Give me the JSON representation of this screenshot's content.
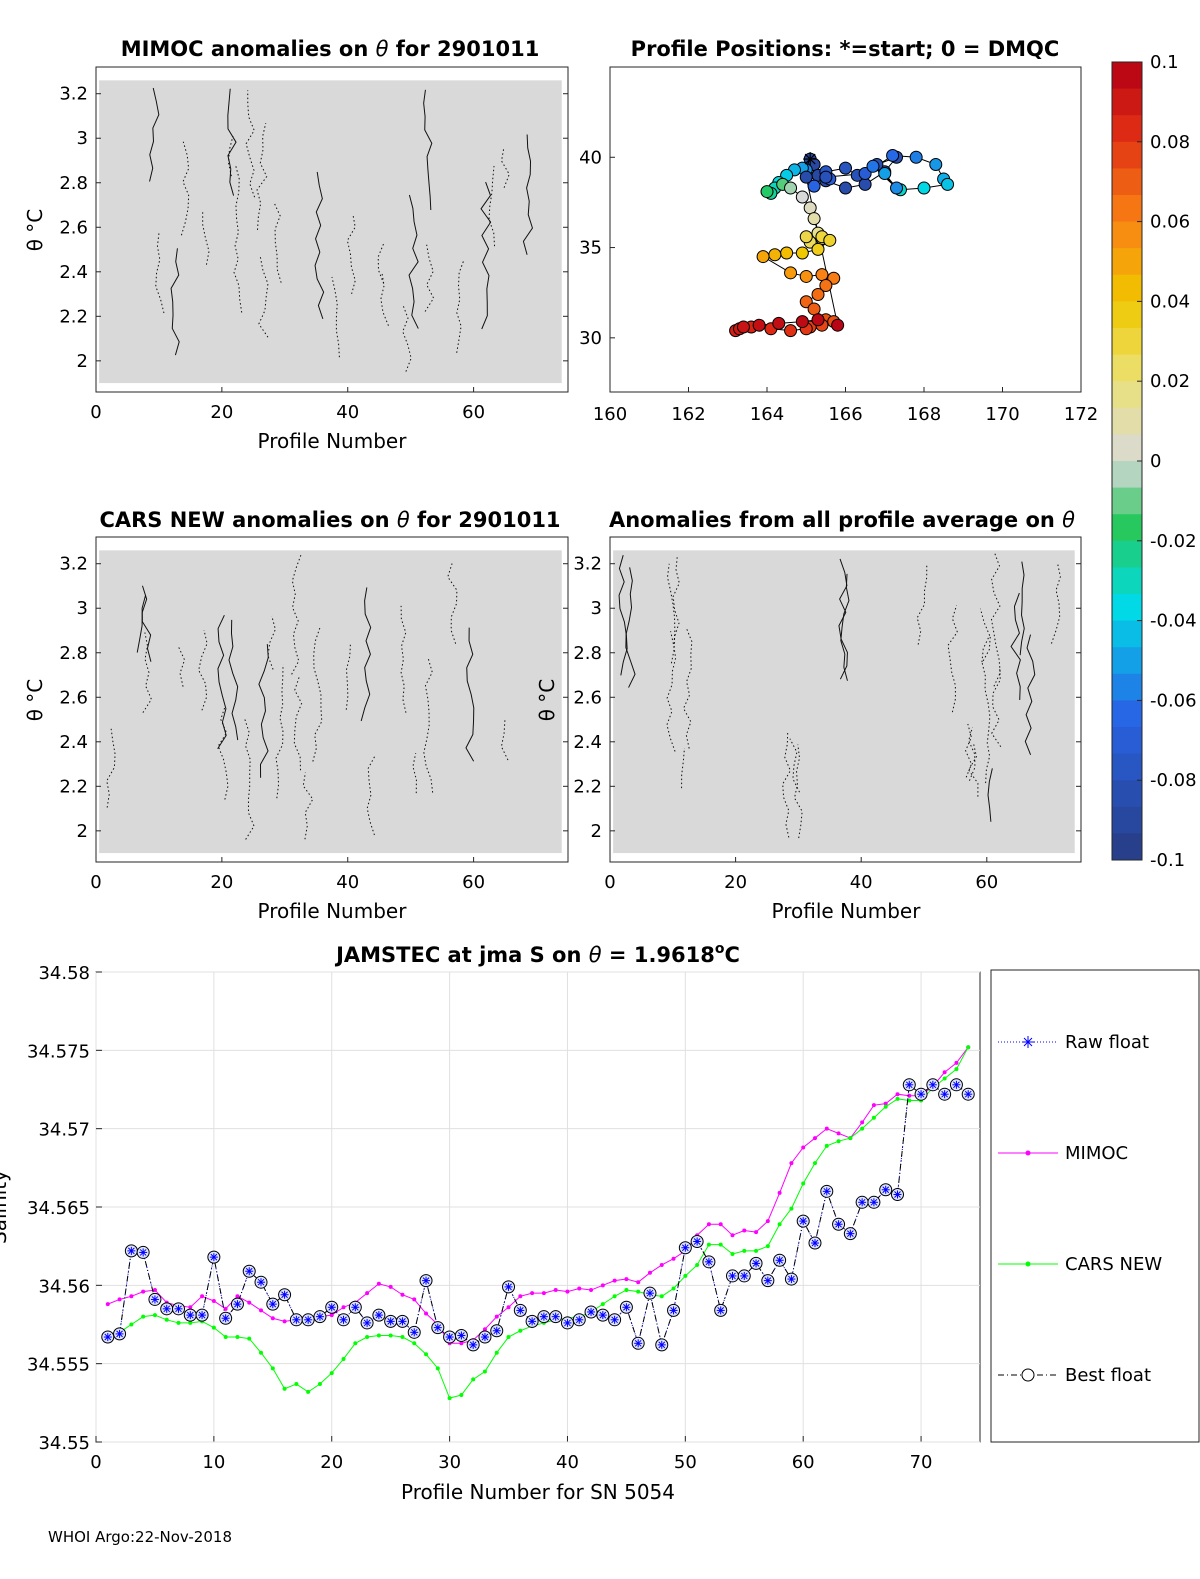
{
  "colors": {
    "mimoc": "#ff00ff",
    "cars": "#00ff00",
    "raw": "#0000ff",
    "best": "#000000",
    "fill": "#d9d9d9"
  },
  "footer": "WHOI Argo:22-Nov-2018",
  "colorbar": {
    "ticks": [
      "0.1",
      "0.08",
      "0.06",
      "0.04",
      "0.02",
      "0",
      "-0.02",
      "-0.04",
      "-0.06",
      "-0.08",
      "-0.1"
    ],
    "range": [
      -0.1,
      0.1
    ]
  },
  "chart_data": [
    {
      "id": "mimoc",
      "type": "heatmap",
      "title_parts": [
        "MIMOC anomalies on ",
        "θ",
        "  for 2901011"
      ],
      "xlabel": "Profile Number",
      "ylabel": "θ °C",
      "xlim": [
        0,
        75
      ],
      "ylim": [
        1.86,
        3.32
      ],
      "xticks": [
        0,
        20,
        40,
        60
      ],
      "yticks": [
        2,
        2.2,
        2.4,
        2.6,
        2.8,
        3,
        3.2
      ],
      "ytick_labels": [
        "2",
        "2.2",
        "2.4",
        "2.6",
        "2.8",
        "3",
        "3.2"
      ]
    },
    {
      "id": "positions",
      "type": "scatter",
      "title": "Profile Positions: *=start; 0 = DMQC",
      "xlim": [
        160,
        172
      ],
      "ylim": [
        27,
        45
      ],
      "xticks": [
        160,
        162,
        164,
        166,
        168,
        170,
        172
      ],
      "yticks": [
        30,
        35,
        40
      ],
      "x": [
        165.1,
        165.2,
        165.3,
        165.5,
        166.0,
        166.5,
        167.0,
        167.3,
        166.8,
        166.3,
        166.0,
        165.5,
        165.6,
        165.2,
        165.0,
        164.9,
        164.7,
        164.5,
        164.3,
        164.2,
        164.1,
        164.0,
        164.4,
        164.6,
        164.9,
        165.1,
        165.2,
        165.3,
        165.4,
        165.1,
        165.0,
        165.4,
        165.6,
        165.3,
        164.9,
        164.5,
        164.2,
        163.9,
        164.6,
        165.0,
        165.4,
        165.7,
        165.5,
        165.3,
        165.0,
        165.2,
        165.5,
        165.7,
        165.4,
        165.1,
        165.0,
        164.6,
        164.1,
        163.6,
        163.2,
        163.3,
        163.4,
        163.8,
        164.3,
        164.9,
        165.3,
        165.8,
        165.0,
        165.5,
        166.5,
        167.2,
        167.8,
        168.3,
        168.5,
        168.6,
        168.0,
        167.4,
        166.7,
        167.3,
        167.0
      ],
      "y": [
        39.9,
        39.6,
        39.0,
        38.7,
        38.3,
        38.5,
        39.2,
        40.0,
        39.6,
        39.0,
        39.4,
        39.2,
        38.8,
        38.4,
        39.3,
        39.4,
        39.3,
        39.0,
        38.6,
        38.3,
        38.0,
        38.1,
        38.5,
        38.3,
        37.8,
        37.2,
        36.6,
        35.8,
        35.5,
        35.3,
        35.6,
        35.6,
        35.4,
        34.9,
        34.7,
        34.7,
        34.6,
        34.5,
        33.6,
        33.4,
        33.5,
        33.3,
        32.9,
        32.4,
        32.0,
        31.6,
        31.0,
        30.9,
        30.7,
        30.6,
        30.5,
        30.4,
        30.5,
        30.6,
        30.4,
        30.5,
        30.6,
        30.7,
        30.8,
        30.9,
        31.0,
        30.7,
        38.9,
        38.9,
        39.1,
        40.1,
        40.0,
        39.6,
        38.8,
        38.5,
        38.3,
        38.2,
        39.5,
        38.3,
        39.1
      ],
      "color_values": [
        -0.09,
        -0.089,
        -0.088,
        -0.087,
        -0.086,
        -0.085,
        -0.084,
        -0.083,
        -0.082,
        -0.08,
        -0.078,
        -0.075,
        -0.07,
        -0.065,
        -0.055,
        -0.05,
        -0.045,
        -0.04,
        -0.035,
        -0.03,
        -0.025,
        -0.018,
        -0.012,
        -0.005,
        0.0,
        0.005,
        0.01,
        0.015,
        0.02,
        0.025,
        0.028,
        0.03,
        0.033,
        0.036,
        0.04,
        0.043,
        0.046,
        0.05,
        0.053,
        0.056,
        0.06,
        0.062,
        0.064,
        0.066,
        0.068,
        0.07,
        0.072,
        0.074,
        0.076,
        0.078,
        0.08,
        0.082,
        0.084,
        0.086,
        0.088,
        0.09,
        0.092,
        0.094,
        0.095,
        0.096,
        0.097,
        0.098,
        -0.086,
        -0.08,
        -0.07,
        -0.063,
        -0.058,
        -0.052,
        -0.047,
        -0.042,
        -0.037,
        -0.032,
        -0.06,
        -0.055,
        -0.05
      ],
      "start": [
        165.1,
        39.9
      ]
    },
    {
      "id": "cars",
      "type": "heatmap",
      "title_parts": [
        "CARS NEW anomalies on ",
        "θ",
        " for 2901011"
      ],
      "xlabel": "Profile Number",
      "ylabel": "θ °C",
      "xlim": [
        0,
        75
      ],
      "ylim": [
        1.86,
        3.32
      ],
      "xticks": [
        0,
        20,
        40,
        60
      ],
      "yticks": [
        2,
        2.2,
        2.4,
        2.6,
        2.8,
        3,
        3.2
      ],
      "ytick_labels": [
        "2",
        "2.2",
        "2.4",
        "2.6",
        "2.8",
        "3",
        "3.2"
      ]
    },
    {
      "id": "avg",
      "type": "heatmap",
      "title_parts": [
        "Anomalies from all profile average on ",
        "θ",
        ""
      ],
      "xlabel": "Profile Number",
      "ylabel": "θ °C",
      "xlim": [
        0,
        75
      ],
      "ylim": [
        1.86,
        3.32
      ],
      "xticks": [
        0,
        20,
        40,
        60
      ],
      "yticks": [
        2,
        2.2,
        2.4,
        2.6,
        2.8,
        3,
        3.2
      ],
      "ytick_labels": [
        "2",
        "2.2",
        "2.4",
        "2.6",
        "2.8",
        "3",
        "3.2"
      ]
    },
    {
      "id": "jamstec",
      "type": "line",
      "title_parts": [
        "JAMSTEC at jma S on ",
        "θ",
        " = 1.9618",
        "o",
        "C"
      ],
      "xlabel": "Profile Number for SN 5054",
      "ylabel": "Salinity",
      "xlim": [
        0,
        75
      ],
      "ylim": [
        34.55,
        34.58
      ],
      "xticks": [
        0,
        10,
        20,
        30,
        40,
        50,
        60,
        70
      ],
      "yticks": [
        34.55,
        34.555,
        34.56,
        34.565,
        34.57,
        34.575,
        34.58
      ],
      "ytick_labels": [
        "34.55",
        "34.555",
        "34.56",
        "34.565",
        "34.57",
        "34.575",
        "34.58"
      ],
      "legend": [
        "Raw float",
        "MIMOC",
        "CARS NEW",
        "Best float"
      ],
      "x": [
        1,
        2,
        3,
        4,
        5,
        6,
        7,
        8,
        9,
        10,
        11,
        12,
        13,
        14,
        15,
        16,
        17,
        18,
        19,
        20,
        21,
        22,
        23,
        24,
        25,
        26,
        27,
        28,
        29,
        30,
        31,
        32,
        33,
        34,
        35,
        36,
        37,
        38,
        39,
        40,
        41,
        42,
        43,
        44,
        45,
        46,
        47,
        48,
        49,
        50,
        51,
        52,
        53,
        54,
        55,
        56,
        57,
        58,
        59,
        60,
        61,
        62,
        63,
        64,
        65,
        66,
        67,
        68,
        69,
        70,
        71,
        72,
        73,
        74
      ],
      "series": [
        {
          "name": "MIMOC",
          "values": [
            34.5588,
            34.5591,
            34.5593,
            34.5596,
            34.5597,
            34.5589,
            34.5587,
            34.5586,
            34.5593,
            34.559,
            34.5585,
            34.5593,
            34.5589,
            34.5584,
            34.5579,
            34.5577,
            34.5578,
            34.5579,
            34.558,
            34.5581,
            34.5586,
            34.5589,
            34.5595,
            34.5601,
            34.5599,
            34.5594,
            34.5591,
            34.5582,
            34.5575,
            34.5563,
            34.5563,
            34.5565,
            34.5572,
            34.558,
            34.5586,
            34.5593,
            34.5595,
            34.5595,
            34.5597,
            34.5596,
            34.5598,
            34.5597,
            34.56,
            34.5603,
            34.5604,
            34.5602,
            34.5608,
            34.5613,
            34.5617,
            34.5622,
            34.5632,
            34.5639,
            34.5639,
            34.5632,
            34.5635,
            34.5634,
            34.5641,
            34.5659,
            34.5678,
            34.5688,
            34.5694,
            34.57,
            34.5697,
            34.5694,
            34.5704,
            34.5715,
            34.5716,
            34.5722,
            34.5721,
            34.5721,
            34.5727,
            34.5736,
            34.5742,
            34.5752
          ]
        },
        {
          "name": "CARS NEW",
          "values": [
            34.5567,
            34.557,
            34.5575,
            34.558,
            34.5581,
            34.5578,
            34.5576,
            34.5576,
            34.5577,
            34.5573,
            34.5567,
            34.5567,
            34.5566,
            34.5557,
            34.5547,
            34.5534,
            34.5537,
            34.5532,
            34.5537,
            34.5544,
            34.5553,
            34.5563,
            34.5567,
            34.5568,
            34.5568,
            34.5567,
            34.5563,
            34.5556,
            34.5547,
            34.5528,
            34.553,
            34.554,
            34.5545,
            34.5557,
            34.5567,
            34.5571,
            34.5574,
            34.5576,
            34.5578,
            34.5579,
            34.558,
            34.5583,
            34.5588,
            34.5593,
            34.5597,
            34.5596,
            34.5594,
            34.5593,
            34.5598,
            34.5606,
            34.5613,
            34.5626,
            34.5626,
            34.562,
            34.5622,
            34.5622,
            34.5625,
            34.5639,
            34.5649,
            34.5665,
            34.5678,
            34.5689,
            34.5692,
            34.5694,
            34.57,
            34.5707,
            34.5714,
            34.5719,
            34.5718,
            34.5718,
            34.5726,
            34.5732,
            34.5738,
            34.5752
          ]
        },
        {
          "name": "Raw float",
          "values": [
            34.5567,
            34.5569,
            34.5622,
            34.5621,
            34.5591,
            34.5585,
            34.5585,
            34.5581,
            34.5581,
            34.5618,
            34.5579,
            34.5588,
            34.5609,
            34.5602,
            34.5588,
            34.5594,
            34.5578,
            34.5578,
            34.558,
            34.5586,
            34.5578,
            34.5586,
            34.5576,
            34.5581,
            34.5577,
            34.5577,
            34.557,
            34.5603,
            34.5573,
            34.5567,
            34.5568,
            34.5562,
            34.5567,
            34.5571,
            34.5599,
            34.5584,
            34.5577,
            34.558,
            34.558,
            34.5576,
            34.5578,
            34.5583,
            34.5581,
            34.5578,
            34.5586,
            34.5563,
            34.5595,
            34.5562,
            34.5584,
            34.5624,
            34.5628,
            34.5615,
            34.5584,
            34.5606,
            34.5606,
            34.5614,
            34.5603,
            34.5616,
            34.5604,
            34.5641,
            34.5627,
            34.566,
            34.5639,
            34.5633,
            34.5653,
            34.5653,
            34.5661,
            34.5658,
            34.5728,
            34.5722,
            34.5728,
            34.5722,
            34.5728,
            34.5722
          ]
        },
        {
          "name": "Best float",
          "values": [
            34.5567,
            34.5569,
            34.5622,
            34.5621,
            34.5591,
            34.5585,
            34.5585,
            34.5581,
            34.5581,
            34.5618,
            34.5579,
            34.5588,
            34.5609,
            34.5602,
            34.5588,
            34.5594,
            34.5578,
            34.5578,
            34.558,
            34.5586,
            34.5578,
            34.5586,
            34.5576,
            34.5581,
            34.5577,
            34.5577,
            34.557,
            34.5603,
            34.5573,
            34.5567,
            34.5568,
            34.5562,
            34.5567,
            34.5571,
            34.5599,
            34.5584,
            34.5577,
            34.558,
            34.558,
            34.5576,
            34.5578,
            34.5583,
            34.5581,
            34.5578,
            34.5586,
            34.5563,
            34.5595,
            34.5562,
            34.5584,
            34.5624,
            34.5628,
            34.5615,
            34.5584,
            34.5606,
            34.5606,
            34.5614,
            34.5603,
            34.5616,
            34.5604,
            34.5641,
            34.5627,
            34.566,
            34.5639,
            34.5633,
            34.5653,
            34.5653,
            34.5661,
            34.5658,
            34.5728,
            34.5722,
            34.5728,
            34.5722,
            34.5728,
            34.5722
          ]
        }
      ]
    }
  ]
}
